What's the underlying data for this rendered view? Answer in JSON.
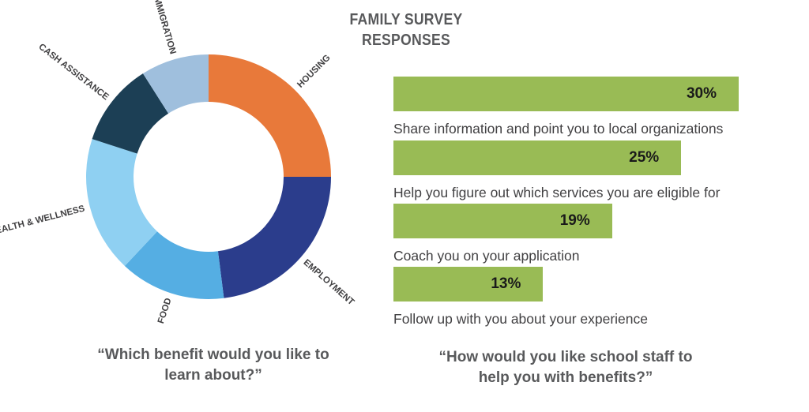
{
  "title": {
    "line1": "FAMILY SURVEY",
    "line2": "RESPONSES"
  },
  "chart_data": [
    {
      "type": "pie",
      "subtype": "donut",
      "caption_line1": "“Which benefit would you like to",
      "caption_line2": "learn about?”",
      "slices": [
        {
          "label": "HOUSING",
          "value": 25,
          "color": "#e8793a"
        },
        {
          "label": "EMPLOYMENT",
          "value": 23,
          "color": "#2b3d8c"
        },
        {
          "label": "FOOD",
          "value": 14,
          "color": "#55aee3"
        },
        {
          "label": "HEALTH & WELLNESS",
          "value": 18,
          "color": "#8fd0f2"
        },
        {
          "label": "CASH ASSISTANCE",
          "value": 11,
          "color": "#1c3f55"
        },
        {
          "label": "IMMIGRATION",
          "value": 9,
          "color": "#9fbfdd"
        }
      ]
    },
    {
      "type": "bar",
      "orientation": "horizontal",
      "caption_line1": "“How would you like school staff to",
      "caption_line2": "help you with benefits?”",
      "color": "#99bb55",
      "xlim": [
        0,
        30
      ],
      "categories": [
        "Share information and point you to local organizations",
        "Help you figure out which services you are eligible for",
        "Coach you on your application",
        "Follow up with you about your experience"
      ],
      "values": [
        30,
        25,
        19,
        13
      ],
      "value_labels": [
        "30%",
        "25%",
        "19%",
        "13%"
      ]
    }
  ]
}
